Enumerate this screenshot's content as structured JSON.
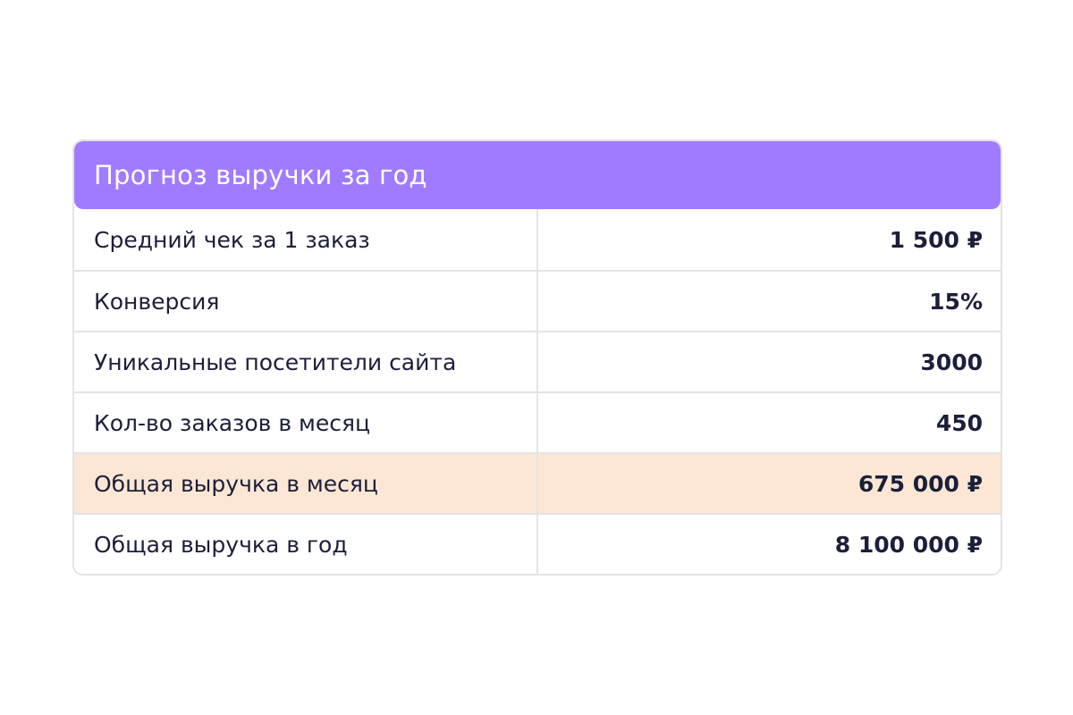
{
  "table": {
    "title": "Прогноз выручки за год",
    "rows": [
      {
        "label": "Средний чек за 1 заказ",
        "value": "1 500 ₽",
        "highlight": false
      },
      {
        "label": "Конверсия",
        "value": "15%",
        "highlight": false
      },
      {
        "label": "Уникальные посетители сайта",
        "value": "3000",
        "highlight": false
      },
      {
        "label": "Кол-во заказов в месяц",
        "value": "450",
        "highlight": false
      },
      {
        "label": "Общая выручка в месяц",
        "value": "675 000 ₽",
        "highlight": true
      },
      {
        "label": "Общая выручка в год",
        "value": "8 100 000 ₽",
        "highlight": false
      }
    ]
  },
  "colors": {
    "header_bg": "#a17bff",
    "highlight_bg": "#fde7d4",
    "border": "#e3e3e8",
    "text": "#1b1f3a"
  }
}
